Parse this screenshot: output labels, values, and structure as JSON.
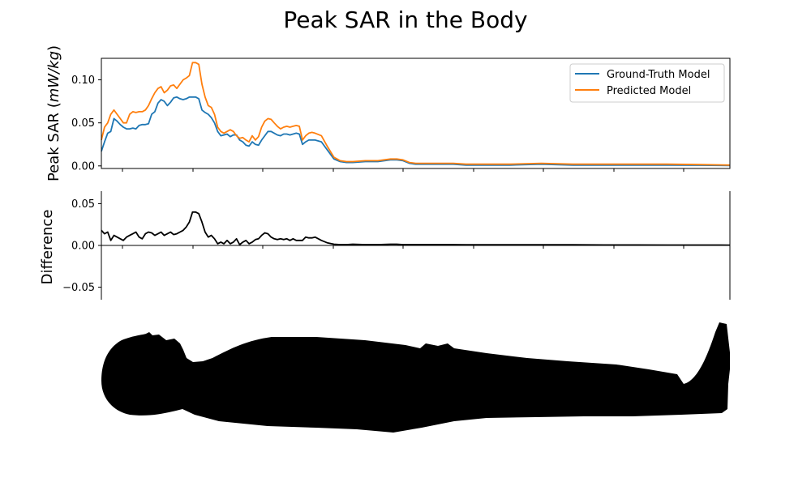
{
  "chart_data": [
    {
      "type": "line",
      "title": "Peak SAR in the Body",
      "ylabel_main": "Peak SAR (",
      "ylabel_unit": "mW/kg",
      "ylabel_end": ")",
      "xlim": [
        0,
        100
      ],
      "ylim": [
        -0.003,
        0.125
      ],
      "yticks": [
        "0.00",
        "0.05",
        "0.10"
      ],
      "ytick_values": [
        0,
        0.05,
        0.1
      ],
      "legend_position": "upper right",
      "series": [
        {
          "name": "Ground-Truth Model",
          "color": "#1f77b4",
          "x": [
            0,
            0.5,
            1,
            1.5,
            2,
            2.5,
            3,
            3.5,
            4,
            4.5,
            5,
            5.5,
            6,
            6.5,
            7,
            7.5,
            8,
            8.5,
            9,
            9.5,
            10,
            10.5,
            11,
            11.5,
            12,
            12.5,
            13,
            13.5,
            14,
            14.5,
            15,
            15.5,
            16,
            16.5,
            17,
            17.5,
            18,
            18.5,
            19,
            19.5,
            20,
            20.5,
            21,
            21.5,
            22,
            22.5,
            23,
            23.5,
            24,
            24.5,
            25,
            25.5,
            26,
            26.5,
            27,
            27.5,
            28,
            28.5,
            29,
            29.5,
            30,
            30.5,
            31,
            31.5,
            32,
            32.5,
            33,
            33.5,
            34,
            35,
            36,
            37,
            38,
            39,
            40,
            42,
            44,
            46,
            47,
            48,
            49,
            50,
            52,
            54,
            56,
            58,
            60,
            65,
            70,
            75,
            80,
            85,
            90,
            95,
            100
          ],
          "y": [
            0.017,
            0.028,
            0.038,
            0.04,
            0.055,
            0.052,
            0.048,
            0.045,
            0.043,
            0.043,
            0.044,
            0.043,
            0.047,
            0.048,
            0.048,
            0.049,
            0.06,
            0.063,
            0.073,
            0.077,
            0.075,
            0.07,
            0.074,
            0.079,
            0.08,
            0.078,
            0.077,
            0.078,
            0.08,
            0.08,
            0.08,
            0.078,
            0.065,
            0.062,
            0.06,
            0.056,
            0.05,
            0.04,
            0.035,
            0.036,
            0.037,
            0.034,
            0.036,
            0.036,
            0.03,
            0.028,
            0.024,
            0.023,
            0.028,
            0.025,
            0.024,
            0.03,
            0.035,
            0.04,
            0.04,
            0.038,
            0.036,
            0.035,
            0.037,
            0.037,
            0.036,
            0.037,
            0.038,
            0.037,
            0.025,
            0.028,
            0.03,
            0.03,
            0.03,
            0.028,
            0.018,
            0.008,
            0.005,
            0.004,
            0.004,
            0.005,
            0.005,
            0.007,
            0.007,
            0.006,
            0.003,
            0.002,
            0.002,
            0.002,
            0.002,
            0.001,
            0.001,
            0.001,
            0.002,
            0.001,
            0.001,
            0.001,
            0.001,
            0.0008,
            0.0005
          ]
        },
        {
          "name": "Predicted Model",
          "color": "#ff7f0e",
          "x": [
            0,
            0.5,
            1,
            1.5,
            2,
            2.5,
            3,
            3.5,
            4,
            4.5,
            5,
            5.5,
            6,
            6.5,
            7,
            7.5,
            8,
            8.5,
            9,
            9.5,
            10,
            10.5,
            11,
            11.5,
            12,
            12.5,
            13,
            13.5,
            14,
            14.5,
            15,
            15.5,
            16,
            16.5,
            17,
            17.5,
            18,
            18.5,
            19,
            19.5,
            20,
            20.5,
            21,
            21.5,
            22,
            22.5,
            23,
            23.5,
            24,
            24.5,
            25,
            25.5,
            26,
            26.5,
            27,
            27.5,
            28,
            28.5,
            29,
            29.5,
            30,
            30.5,
            31,
            31.5,
            32,
            32.5,
            33,
            33.5,
            34,
            35,
            36,
            37,
            38,
            39,
            40,
            42,
            44,
            46,
            47,
            48,
            49,
            50,
            52,
            54,
            56,
            58,
            60,
            65,
            70,
            75,
            80,
            85,
            90,
            95,
            100
          ],
          "y": [
            0.03,
            0.045,
            0.05,
            0.06,
            0.065,
            0.06,
            0.055,
            0.05,
            0.05,
            0.06,
            0.063,
            0.062,
            0.063,
            0.063,
            0.065,
            0.07,
            0.078,
            0.085,
            0.09,
            0.092,
            0.085,
            0.088,
            0.093,
            0.094,
            0.09,
            0.095,
            0.1,
            0.102,
            0.105,
            0.12,
            0.12,
            0.118,
            0.095,
            0.08,
            0.07,
            0.068,
            0.06,
            0.045,
            0.04,
            0.038,
            0.04,
            0.042,
            0.04,
            0.035,
            0.032,
            0.033,
            0.03,
            0.028,
            0.035,
            0.03,
            0.034,
            0.045,
            0.052,
            0.055,
            0.054,
            0.05,
            0.046,
            0.043,
            0.045,
            0.046,
            0.045,
            0.046,
            0.047,
            0.046,
            0.03,
            0.035,
            0.038,
            0.039,
            0.038,
            0.035,
            0.022,
            0.01,
            0.006,
            0.005,
            0.005,
            0.006,
            0.006,
            0.008,
            0.008,
            0.007,
            0.004,
            0.003,
            0.003,
            0.003,
            0.003,
            0.002,
            0.002,
            0.002,
            0.003,
            0.002,
            0.002,
            0.002,
            0.002,
            0.0015,
            0.001
          ]
        }
      ]
    },
    {
      "type": "line",
      "ylabel": "Difference",
      "xlim": [
        0,
        100
      ],
      "ylim": [
        -0.065,
        0.065
      ],
      "yticks": [
        "0.05",
        "0.00",
        "−0.05"
      ],
      "ytick_values": [
        0.05,
        0,
        -0.05
      ],
      "series": [
        {
          "color": "#000000",
          "x": [
            0,
            0.5,
            1,
            1.5,
            2,
            2.5,
            3,
            3.5,
            4,
            4.5,
            5,
            5.5,
            6,
            6.5,
            7,
            7.5,
            8,
            8.5,
            9,
            9.5,
            10,
            10.5,
            11,
            11.5,
            12,
            12.5,
            13,
            13.5,
            14,
            14.5,
            15,
            15.5,
            16,
            16.5,
            17,
            17.5,
            18,
            18.5,
            19,
            19.5,
            20,
            20.5,
            21,
            21.5,
            22,
            22.5,
            23,
            23.5,
            24,
            24.5,
            25,
            25.5,
            26,
            26.5,
            27,
            27.5,
            28,
            28.5,
            29,
            29.5,
            30,
            30.5,
            31,
            31.5,
            32,
            32.5,
            33,
            33.5,
            34,
            35,
            36,
            37,
            38,
            39,
            40,
            42,
            44,
            46,
            47,
            48,
            49,
            50,
            52,
            54,
            56,
            58,
            60,
            65,
            70,
            75,
            80,
            85,
            90,
            95,
            100
          ],
          "y": [
            0.018,
            0.014,
            0.016,
            0.006,
            0.012,
            0.01,
            0.008,
            0.006,
            0.01,
            0.012,
            0.014,
            0.016,
            0.01,
            0.008,
            0.014,
            0.016,
            0.015,
            0.012,
            0.014,
            0.016,
            0.012,
            0.014,
            0.016,
            0.013,
            0.014,
            0.016,
            0.018,
            0.022,
            0.028,
            0.04,
            0.04,
            0.038,
            0.028,
            0.016,
            0.01,
            0.012,
            0.008,
            0.002,
            0.004,
            0.002,
            0.006,
            0.002,
            0.004,
            0.008,
            0.001,
            0.004,
            0.006,
            0.002,
            0.004,
            0.007,
            0.008,
            0.012,
            0.015,
            0.014,
            0.01,
            0.008,
            0.007,
            0.008,
            0.007,
            0.008,
            0.006,
            0.008,
            0.006,
            0.006,
            0.006,
            0.01,
            0.009,
            0.009,
            0.01,
            0.006,
            0.003,
            0.0015,
            0.001,
            0.001,
            0.0015,
            0.001,
            0.001,
            0.0015,
            0.0015,
            0.001,
            0.001,
            0.001,
            0.001,
            0.001,
            0.001,
            0.0008,
            0.0008,
            0.0008,
            0.0008,
            0.0008,
            0.0006,
            0.0006,
            0.0005,
            0.0005,
            0.0004
          ]
        }
      ]
    }
  ]
}
